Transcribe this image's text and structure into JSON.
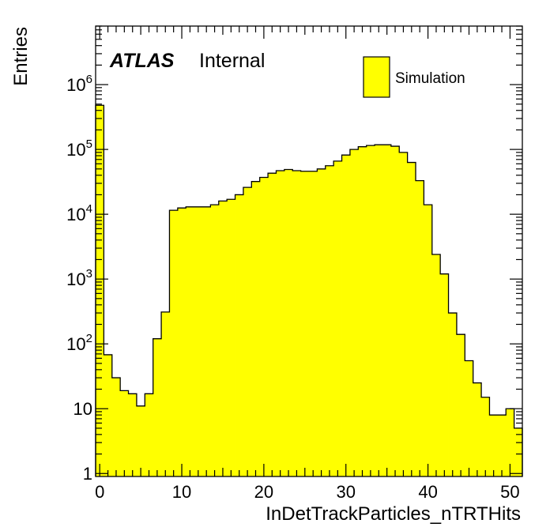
{
  "chart_data": {
    "type": "bar",
    "style": "histogram",
    "xlabel": "InDetTrackParticles_nTRTHits",
    "ylabel": "Entries",
    "xlim": [
      -0.5,
      51.5
    ],
    "ylim": [
      0.9,
      8000000
    ],
    "yscale": "log",
    "fill_color": "#ffff00",
    "line_color": "#000000",
    "grid": false,
    "x_ticks": [
      0,
      10,
      20,
      30,
      40,
      50
    ],
    "x_tick_labels": [
      "0",
      "10",
      "20",
      "30",
      "40",
      "50"
    ],
    "y_ticks": [
      1,
      10,
      100,
      1000,
      10000,
      100000,
      1000000
    ],
    "y_tick_labels": [
      {
        "base": "1",
        "exp": ""
      },
      {
        "base": "10",
        "exp": ""
      },
      {
        "base": "10",
        "exp": "2"
      },
      {
        "base": "10",
        "exp": "3"
      },
      {
        "base": "10",
        "exp": "4"
      },
      {
        "base": "10",
        "exp": "5"
      },
      {
        "base": "10",
        "exp": "6"
      }
    ],
    "bin_width": 1,
    "bin_low_edges": [
      -0.5,
      0.5,
      1.5,
      2.5,
      3.5,
      4.5,
      5.5,
      6.5,
      7.5,
      8.5,
      9.5,
      10.5,
      11.5,
      12.5,
      13.5,
      14.5,
      15.5,
      16.5,
      17.5,
      18.5,
      19.5,
      20.5,
      21.5,
      22.5,
      23.5,
      24.5,
      25.5,
      26.5,
      27.5,
      28.5,
      29.5,
      30.5,
      31.5,
      32.5,
      33.5,
      34.5,
      35.5,
      36.5,
      37.5,
      38.5,
      39.5,
      40.5,
      41.5,
      42.5,
      43.5,
      44.5,
      45.5,
      46.5,
      47.5,
      48.5,
      49.5,
      50.5
    ],
    "values": [
      480000,
      68,
      30,
      19,
      17,
      11,
      17,
      120,
      310,
      11500,
      12500,
      13000,
      13000,
      13000,
      14000,
      16000,
      17000,
      20000,
      26000,
      32000,
      37000,
      43000,
      47000,
      49000,
      47000,
      46000,
      46000,
      50000,
      56000,
      66000,
      82000,
      100000,
      110000,
      115000,
      118000,
      118000,
      112000,
      90000,
      63000,
      33000,
      14000,
      2400,
      1200,
      300,
      140,
      55,
      25,
      15,
      8,
      8,
      10,
      5
    ],
    "legend": [
      {
        "label": "Simulation",
        "placement": "top-right"
      }
    ],
    "annotations": {
      "experiment": "ATLAS",
      "status": "Internal"
    }
  }
}
